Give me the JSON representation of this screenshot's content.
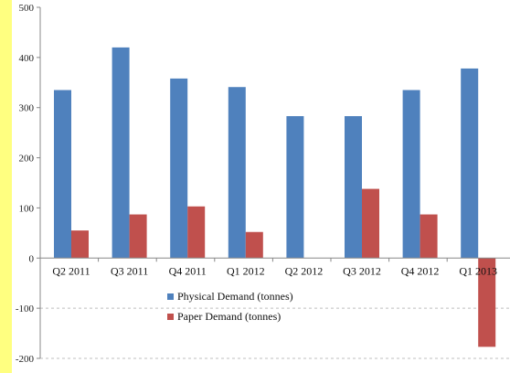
{
  "chart_data": {
    "type": "bar",
    "categories": [
      "Q2 2011",
      "Q3 2011",
      "Q4 2011",
      "Q1 2012",
      "Q2 2012",
      "Q3 2012",
      "Q4 2012",
      "Q1 2013"
    ],
    "series": [
      {
        "name": "Physical Demand (tonnes)",
        "values": [
          335,
          420,
          358,
          341,
          283,
          283,
          335,
          378
        ],
        "color": "#4f81bd"
      },
      {
        "name": "Paper Demand (tonnes)",
        "values": [
          55,
          87,
          103,
          52,
          0,
          138,
          87,
          -177
        ],
        "color": "#c0504d"
      }
    ],
    "y_ticks": [
      "500",
      "400",
      "300",
      "200",
      "100",
      "0",
      "-100",
      "-200"
    ],
    "ylim": [
      -200,
      500
    ],
    "grid": "dashed gridlines below zero",
    "legend_position": "inside, center-bottom"
  },
  "colors": {
    "left_band": "#ffff80",
    "axis": "#888888",
    "grid": "#bfbfbf"
  }
}
